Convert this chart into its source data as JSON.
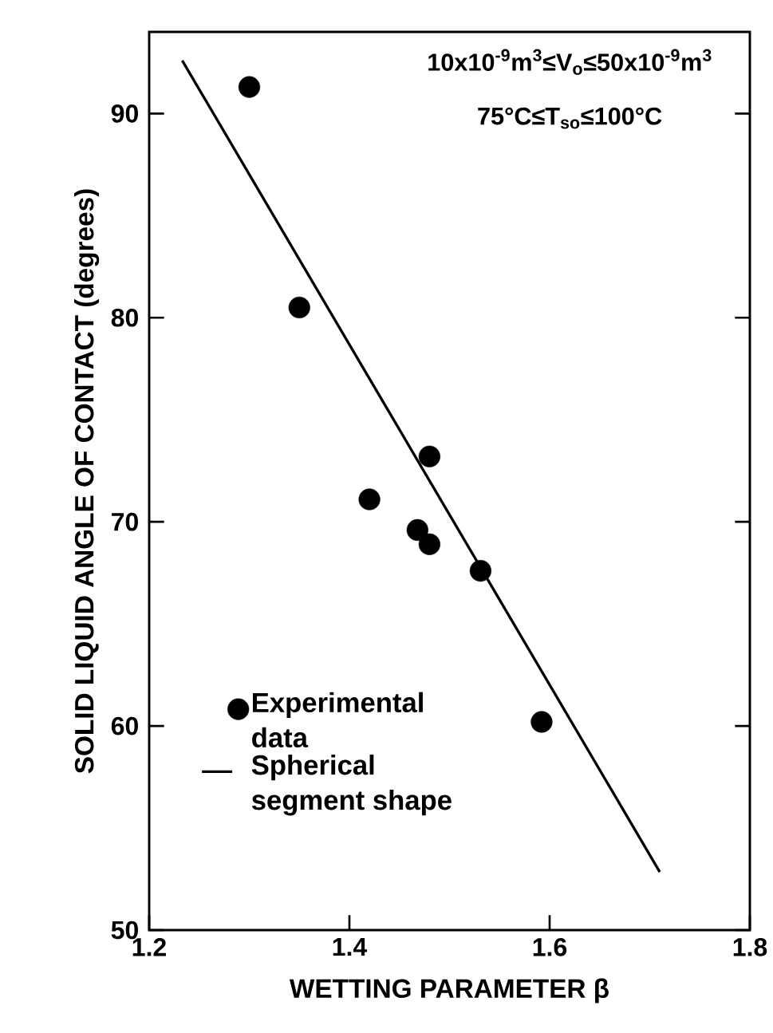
{
  "chart_data": {
    "type": "scatter",
    "xlabel": "WETTING PARAMETER β",
    "ylabel": "SOLID LIQUID ANGLE OF CONTACT (degrees)",
    "xlim": [
      1.2,
      1.8
    ],
    "ylim": [
      50,
      94
    ],
    "xticks": [
      1.2,
      1.4,
      1.6,
      1.8
    ],
    "yticks": [
      50,
      60,
      70,
      80,
      90
    ],
    "legend": "bottom left",
    "series": [
      {
        "name": "Experimental data",
        "type": "scatter",
        "color": "#000000",
        "marker": "circle",
        "x": [
          1.3,
          1.35,
          1.42,
          1.48,
          1.468,
          1.48,
          1.531,
          1.592
        ],
        "values": [
          91.3,
          80.5,
          71.1,
          73.2,
          69.6,
          68.9,
          67.6,
          60.2
        ]
      },
      {
        "name": "Spherical segment shape",
        "type": "line",
        "color": "#000000",
        "line_style": "solid",
        "x": [
          1.233,
          1.71
        ],
        "values": [
          92.6,
          52.85
        ]
      }
    ],
    "annotations": [
      "10x10$^{-9}$m$^{3}$≤V$_{o}$≤50x10$^{-9}$m$^{3}$",
      "75°C≤T$_{so}$≤100°C"
    ]
  }
}
